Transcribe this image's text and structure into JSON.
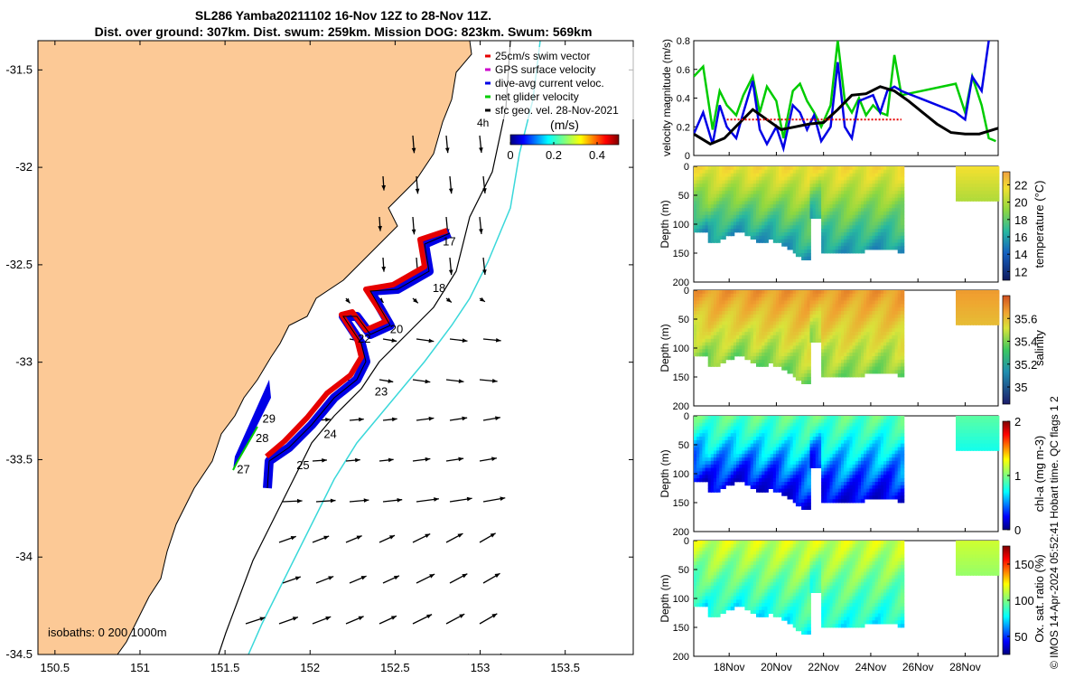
{
  "title_line1": "SL286 Yamba20211102 16-Nov 12Z to 28-Nov 11Z.",
  "title_line2": "Dist. over ground: 307km. Dist. swum: 259km. Mission DOG: 823km. Swum: 569km",
  "credit": "© IMOS 14-Apr-2024 05:52:41 Hobart time. QC flags 1  2",
  "colors": {
    "land": "#fcc996",
    "coast": "#000000",
    "isobath200": "#000000",
    "isobath1000": "#3ad8da",
    "track_red": "#e60000",
    "track_blue": "#0000e6",
    "gps_magenta": "#cc00cc",
    "glider_green": "#00cc00",
    "current_blue": "#1a1aff",
    "sfc_black": "#000000"
  },
  "chart_data": [
    {
      "type": "map",
      "xticks": [
        "150.5",
        "151",
        "151.5",
        "152",
        "152.5",
        "153",
        "153.5"
      ],
      "yticks": [
        "-31.5",
        "-32",
        "-32.5",
        "-33",
        "-33.5",
        "-34",
        "-34.5"
      ],
      "xlim": [
        150.4,
        153.9
      ],
      "ylim": [
        -34.5,
        -31.35
      ],
      "legend": [
        {
          "label": "25cm/s swim vector",
          "color": "#e60000"
        },
        {
          "label": "GPS surface velocity",
          "color": "#cc00cc"
        },
        {
          "label": "dive-avg current veloc.",
          "color": "#0000e6"
        },
        {
          "label": "net glider velocity",
          "color": "#00cc00"
        },
        {
          "label": "sfc geo. vel. 28-Nov-2021",
          "color": "#000000"
        }
      ],
      "legend_extra": "4h",
      "colorbar": {
        "label": "(m/s)",
        "ticks": [
          "0",
          "0.2",
          "0.4"
        ],
        "range": [
          0,
          0.5
        ]
      },
      "isobaths_label": "isobaths: 0   200  1000m",
      "day_labels": [
        {
          "text": "17",
          "lon": 152.78,
          "lat": -32.4
        },
        {
          "text": "18",
          "lon": 152.72,
          "lat": -32.64
        },
        {
          "text": "20",
          "lon": 152.47,
          "lat": -32.85
        },
        {
          "text": "22",
          "lon": 152.28,
          "lat": -32.9
        },
        {
          "text": "23",
          "lon": 152.38,
          "lat": -33.17
        },
        {
          "text": "24",
          "lon": 152.08,
          "lat": -33.39
        },
        {
          "text": "25",
          "lon": 151.92,
          "lat": -33.55
        },
        {
          "text": "27",
          "lon": 151.57,
          "lat": -33.57
        },
        {
          "text": "28",
          "lon": 151.68,
          "lat": -33.41
        },
        {
          "text": "29",
          "lon": 151.72,
          "lat": -33.31
        }
      ]
    },
    {
      "type": "line",
      "ylabel": "velocity magnitude (m/s)",
      "ylim": [
        0,
        0.8
      ],
      "yticks": [
        "0",
        "0.2",
        "0.4",
        "0.6",
        "0.8"
      ],
      "xlim": [
        16.5,
        29.4
      ],
      "series": [
        {
          "color": "#00cc00",
          "x": [
            16.5,
            16.9,
            17.3,
            17.6,
            17.9,
            18.3,
            18.6,
            19.0,
            19.3,
            19.6,
            20.0,
            20.3,
            20.7,
            21.0,
            21.3,
            21.6,
            21.9,
            22.3,
            22.6,
            22.9,
            23.2,
            23.5,
            23.8,
            24.1,
            24.4,
            24.7,
            25.0,
            25.3,
            27.6,
            28.0,
            28.3,
            28.7,
            29.0,
            29.3
          ],
          "y": [
            0.55,
            0.62,
            0.18,
            0.45,
            0.35,
            0.28,
            0.42,
            0.55,
            0.3,
            0.48,
            0.38,
            0.12,
            0.45,
            0.5,
            0.38,
            0.3,
            0.2,
            0.35,
            0.8,
            0.38,
            0.3,
            0.4,
            0.28,
            0.35,
            0.3,
            0.28,
            0.7,
            0.42,
            0.5,
            0.3,
            0.55,
            0.35,
            0.12,
            0.1
          ]
        },
        {
          "color": "#0000e6",
          "x": [
            16.5,
            16.9,
            17.3,
            17.6,
            17.9,
            18.3,
            18.6,
            19.0,
            19.3,
            19.6,
            20.0,
            20.3,
            20.7,
            21.0,
            21.3,
            21.6,
            21.9,
            22.3,
            22.6,
            22.9,
            23.2,
            23.5,
            23.8,
            24.1,
            24.4,
            24.7,
            25.0,
            25.3,
            27.6,
            28.0,
            28.3,
            28.7,
            29.0
          ],
          "y": [
            0.15,
            0.3,
            0.08,
            0.35,
            0.2,
            0.12,
            0.3,
            0.52,
            0.18,
            0.08,
            0.2,
            0.05,
            0.35,
            0.3,
            0.18,
            0.28,
            0.1,
            0.2,
            0.65,
            0.2,
            0.12,
            0.38,
            0.4,
            0.42,
            0.3,
            0.45,
            0.48,
            0.45,
            0.3,
            0.25,
            0.55,
            0.45,
            0.8
          ]
        },
        {
          "color": "#000000",
          "x": [
            16.5,
            17.2,
            17.8,
            18.4,
            19.0,
            19.6,
            20.2,
            20.8,
            21.4,
            22.0,
            22.6,
            23.2,
            23.8,
            24.4,
            25.0,
            25.6,
            26.2,
            26.8,
            27.4,
            28.0,
            28.6,
            29.4
          ],
          "y": [
            0.15,
            0.08,
            0.12,
            0.22,
            0.32,
            0.25,
            0.18,
            0.2,
            0.22,
            0.23,
            0.32,
            0.42,
            0.43,
            0.48,
            0.45,
            0.38,
            0.3,
            0.22,
            0.16,
            0.15,
            0.15,
            0.19
          ]
        },
        {
          "color": "#e60000",
          "x": [
            17.9,
            25.3
          ],
          "y": [
            0.25,
            0.25
          ]
        }
      ]
    },
    {
      "type": "heatmap",
      "field": "temperature",
      "ylabel": "Depth (m)",
      "clabel": "temperature (°C)",
      "cticks": [
        "12",
        "14",
        "16",
        "18",
        "20",
        "22"
      ],
      "crange": [
        11,
        23.5
      ],
      "yticks": [
        "0",
        "50",
        "100",
        "150",
        "200"
      ],
      "ylim": [
        0,
        200
      ],
      "surface_value": 21,
      "deep_value": 15
    },
    {
      "type": "heatmap",
      "field": "salinity",
      "ylabel": "Depth (m)",
      "clabel": "salinity",
      "cticks": [
        "35",
        "35.2",
        "35.4",
        "35.6"
      ],
      "crange": [
        34.85,
        35.8
      ],
      "yticks": [
        "0",
        "50",
        "100",
        "150",
        "200"
      ],
      "ylim": [
        0,
        200
      ],
      "surface_value": 35.62,
      "deep_value": 35.3
    },
    {
      "type": "heatmap",
      "field": "chlorophyll",
      "ylabel": "Depth (m)",
      "clabel": "chl-a (mg m-3)",
      "cticks": [
        "0",
        "1",
        "2"
      ],
      "crange": [
        0,
        2
      ],
      "yticks": [
        "0",
        "50",
        "100",
        "150",
        "200"
      ],
      "ylim": [
        0,
        200
      ],
      "surface_value": 0.9,
      "deep_value": 0.25
    },
    {
      "type": "heatmap",
      "field": "oxygen",
      "ylabel": "Depth (m)",
      "clabel": "Ox. sat. ratio (%)",
      "cticks": [
        "50",
        "100",
        "150"
      ],
      "crange": [
        25,
        175
      ],
      "yticks": [
        "0",
        "50",
        "100",
        "150",
        "200"
      ],
      "ylim": [
        0,
        200
      ],
      "surface_value": 115,
      "deep_value": 78,
      "xticks": [
        "18Nov",
        "20Nov",
        "22Nov",
        "24Nov",
        "26Nov",
        "28Nov"
      ],
      "xtick_days": [
        18,
        20,
        22,
        24,
        26,
        28
      ]
    }
  ]
}
